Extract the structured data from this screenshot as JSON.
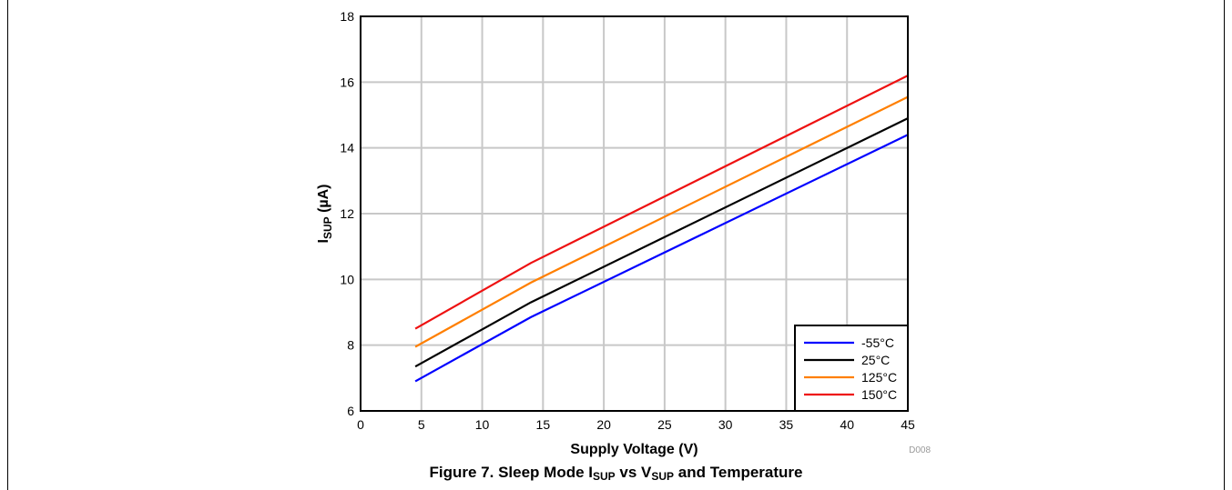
{
  "chart_data": {
    "type": "line",
    "xlabel": "Supply Voltage (V)",
    "ylabel_main": "I",
    "ylabel_sub": "SUP",
    "ylabel_rest": " (µA)",
    "xlim": [
      0,
      45
    ],
    "ylim": [
      6,
      18
    ],
    "xticks": [
      0,
      5,
      10,
      15,
      20,
      25,
      30,
      35,
      40,
      45
    ],
    "yticks": [
      6,
      8,
      10,
      12,
      14,
      16,
      18
    ],
    "grid": true,
    "legend_position": "bottom-right",
    "series": [
      {
        "name": "-55°C",
        "color": "#0000ff",
        "x": [
          4.5,
          14,
          45
        ],
        "y": [
          6.9,
          8.85,
          14.4
        ]
      },
      {
        "name": "25°C",
        "color": "#000000",
        "x": [
          4.5,
          14,
          45
        ],
        "y": [
          7.35,
          9.3,
          14.9
        ]
      },
      {
        "name": "125°C",
        "color": "#ff7f00",
        "x": [
          4.5,
          14,
          45
        ],
        "y": [
          7.95,
          9.9,
          15.55
        ]
      },
      {
        "name": "150°C",
        "color": "#ee1111",
        "x": [
          4.5,
          14,
          45
        ],
        "y": [
          8.5,
          10.5,
          16.2
        ]
      }
    ],
    "code_label": "D008"
  },
  "caption": {
    "prefix": "Figure 7. Sleep Mode I",
    "sub1": "SUP",
    "mid": " vs V",
    "sub2": "SUP",
    "suffix": " and Temperature"
  }
}
